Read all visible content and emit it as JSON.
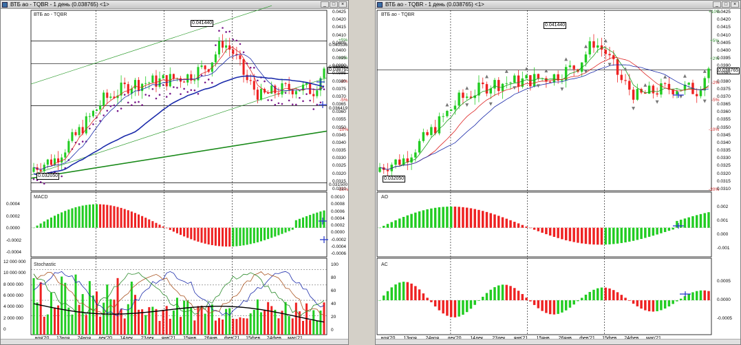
{
  "left": {
    "title": "ВТБ ао - TQBR - 1 день (0.038765) <1>",
    "instrument_label": "ВТБ ао - TQBR",
    "high_tag": "0.041440",
    "low_tag": "0.032050",
    "last_tag": "0.038765",
    "level_tags": [
      "0.040536",
      "0.039100",
      "0.036419",
      "0.031500"
    ],
    "pct_labels": [
      {
        "text": "+5%",
        "color": "#2a8a2a"
      },
      {
        "text": "+2%",
        "color": "#2a8a2a"
      },
      {
        "text": "-2%",
        "color": "#cc2222"
      },
      {
        "text": "-5%",
        "color": "#cc2222"
      },
      {
        "text": "-10%",
        "color": "#cc2222"
      },
      {
        "text": "-20%",
        "color": "#cc2222"
      }
    ],
    "price_axis": [
      "0.0425",
      "0.0420",
      "0.0415",
      "0.0410",
      "0.0405",
      "0.0400",
      "0.0395",
      "0.0390",
      "0.0385",
      "0.0380",
      "0.0375",
      "0.0370",
      "0.0365",
      "0.0360",
      "0.0355",
      "0.0350",
      "0.0345",
      "0.0340",
      "0.0335",
      "0.0330",
      "0.0325",
      "0.0320",
      "0.0315",
      "0.0310"
    ],
    "macd_label": "MACD",
    "macd_left_axis": [
      "0.0004",
      "0.0002",
      "0.0000",
      "-0.0002",
      "-0.0004"
    ],
    "macd_right_axis": [
      "0.0010",
      "0.0008",
      "0.0006",
      "0.0004",
      "0.0002",
      "0.0000",
      "-0.0002",
      "-0.0004",
      "-0.0006"
    ],
    "stoch_label": "Stochastic",
    "vol_axis": [
      "12 000 000",
      "10 000 000",
      "8 000 000",
      "6 000 000",
      "4 000 000",
      "2 000 000",
      "0"
    ],
    "stoch_axis": [
      "100",
      "80",
      "60",
      "40",
      "20",
      "0"
    ],
    "x_labels": [
      "ноя'20",
      "13ноя",
      "24ноя",
      "дек'20",
      "14дек",
      "23дек",
      "янв'21",
      "15янв",
      "26янв",
      "фев'21",
      "15фев",
      "24фев",
      "мар'21"
    ]
  },
  "right": {
    "title": "ВТБ ао - TQBR - 1 день (0.038765) <1>",
    "instrument_label": "ВТБ ао - TQBR",
    "high_tag": "0.041440",
    "low_tag": "0.032050",
    "last_tag": "0.038765",
    "pct_labels": [
      {
        "text": "+10%",
        "color": "#2a8a2a"
      },
      {
        "text": "+5%",
        "color": "#2a8a2a"
      },
      {
        "text": "+2%",
        "color": "#2a8a2a"
      },
      {
        "text": "-2%",
        "color": "#cc2222"
      },
      {
        "text": "-5%",
        "color": "#cc2222"
      },
      {
        "text": "-10%",
        "color": "#cc2222"
      },
      {
        "text": "-20%",
        "color": "#cc2222"
      }
    ],
    "price_axis": [
      "0.0425",
      "0.0420",
      "0.0415",
      "0.0410",
      "0.0405",
      "0.0400",
      "0.0395",
      "0.0390",
      "0.0385",
      "0.0380",
      "0.0375",
      "0.0370",
      "0.0365",
      "0.0360",
      "0.0355",
      "0.0350",
      "0.0345",
      "0.0340",
      "0.0335",
      "0.0330",
      "0.0325",
      "0.0320",
      "0.0315",
      "0.0310"
    ],
    "ao_label": "AO",
    "ao_axis": [
      "0.002",
      "0.001",
      "0.000",
      "-0.001"
    ],
    "ac_label": "AC",
    "ac_axis": [
      "0.0005",
      "0.0000",
      "-0.0005"
    ],
    "x_labels": [
      "ноя'20",
      "13ноя",
      "24ноя",
      "дек'20",
      "14дек",
      "23дек",
      "янв'21",
      "15янв",
      "26янв",
      "фев'21",
      "15фев",
      "24фев",
      "мар'21"
    ]
  },
  "colors": {
    "up": "#22cc22",
    "down": "#ee2222",
    "ma_blue": "#1a2aaa",
    "ma_green": "#1a9a1a",
    "ma_red": "#dd2222",
    "psar": "#7a1a8a",
    "annot": "#2233cc"
  },
  "chart_data": [
    {
      "type": "line",
      "title": "ВТБ ао - TQBR - 1 день (0.038765)",
      "x": [
        "ноя'20",
        "13ноя",
        "24ноя",
        "дек'20",
        "14дек",
        "23дек",
        "янв'21",
        "15янв",
        "26янв",
        "фев'21",
        "15фев",
        "24фев",
        "мар'21"
      ],
      "series": [
        {
          "values": [
            0.0325,
            0.0345,
            0.037,
            0.038,
            0.0383,
            0.038,
            0.0395,
            0.0398,
            0.0372,
            0.0376,
            0.0374,
            0.0376,
            0.0388
          ]
        }
      ],
      "ylim": [
        0.031,
        0.0425
      ]
    }
  ]
}
